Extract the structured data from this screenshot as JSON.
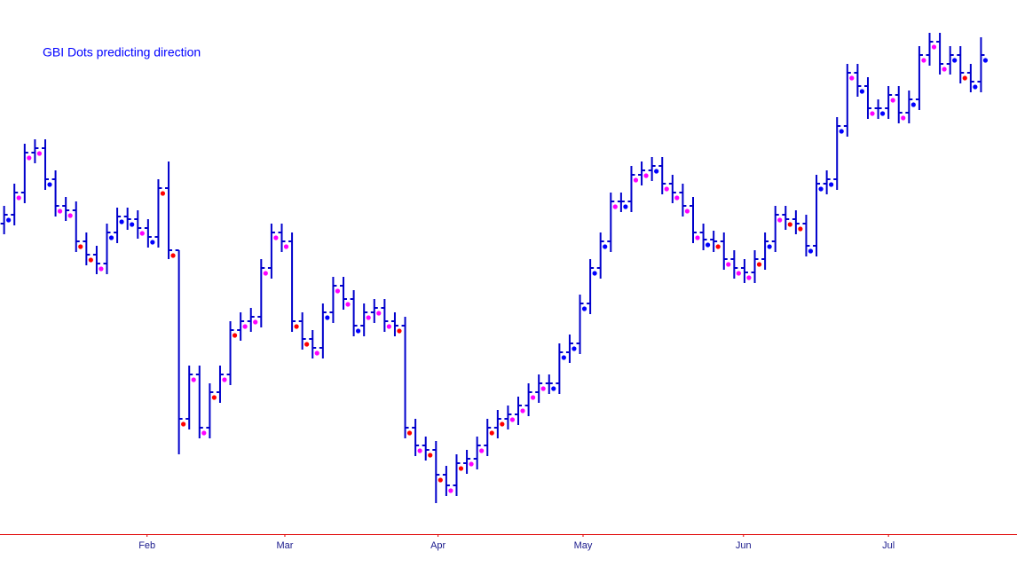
{
  "chart_data": {
    "type": "ohlc",
    "title": "GBI Dots predicting direction",
    "color": "#0000cc",
    "axis_color": "#e00000",
    "xlim": [
      -0.4,
      98.5
    ],
    "ylim": [
      0,
      600
    ],
    "xticks": [
      {
        "value": 13.9,
        "label": "Feb"
      },
      {
        "value": 27.3,
        "label": "Mar"
      },
      {
        "value": 42.2,
        "label": "Apr"
      },
      {
        "value": 56.3,
        "label": "May"
      },
      {
        "value": 71.9,
        "label": "Jun"
      },
      {
        "value": 86.0,
        "label": "Jul"
      }
    ],
    "open": [
      350,
      360,
      385,
      430,
      435,
      400,
      370,
      365,
      330,
      315,
      305,
      340,
      358,
      355,
      345,
      335,
      390,
      320,
      130,
      180,
      120,
      160,
      180,
      230,
      240,
      245,
      300,
      340,
      330,
      240,
      220,
      210,
      250,
      280,
      265,
      235,
      250,
      255,
      240,
      235,
      120,
      100,
      95,
      67,
      55,
      80,
      85,
      100,
      120,
      130,
      135,
      145,
      160,
      170,
      170,
      205,
      215,
      260,
      300,
      330,
      375,
      375,
      405,
      410,
      415,
      395,
      385,
      370,
      340,
      332,
      330,
      310,
      300,
      295,
      310,
      330,
      360,
      355,
      350,
      325,
      395,
      400,
      460,
      520,
      505,
      480,
      480,
      495,
      475,
      490,
      540,
      555,
      530,
      540,
      520,
      510
    ],
    "high": [
      370,
      395,
      440,
      445,
      445,
      410,
      380,
      375,
      340,
      325,
      350,
      368,
      368,
      365,
      355,
      400,
      420,
      320,
      190,
      190,
      170,
      190,
      240,
      250,
      255,
      310,
      350,
      350,
      340,
      250,
      230,
      260,
      290,
      290,
      275,
      260,
      265,
      265,
      250,
      245,
      130,
      110,
      105,
      77,
      90,
      95,
      110,
      130,
      140,
      145,
      155,
      170,
      180,
      180,
      215,
      225,
      270,
      310,
      340,
      385,
      385,
      415,
      420,
      425,
      425,
      405,
      395,
      380,
      350,
      342,
      340,
      320,
      310,
      320,
      340,
      370,
      370,
      365,
      360,
      405,
      410,
      470,
      530,
      530,
      515,
      490,
      505,
      505,
      500,
      550,
      565,
      565,
      550,
      550,
      530,
      560
    ],
    "low": [
      338,
      348,
      373,
      418,
      388,
      358,
      353,
      318,
      303,
      293,
      293,
      328,
      343,
      333,
      323,
      323,
      310,
      90,
      118,
      108,
      108,
      148,
      168,
      218,
      228,
      233,
      288,
      318,
      228,
      208,
      198,
      198,
      238,
      253,
      223,
      223,
      238,
      228,
      223,
      108,
      88,
      83,
      35,
      43,
      43,
      68,
      73,
      88,
      108,
      118,
      123,
      133,
      148,
      158,
      158,
      193,
      203,
      248,
      288,
      318,
      363,
      363,
      393,
      398,
      383,
      373,
      358,
      328,
      320,
      318,
      298,
      288,
      283,
      283,
      298,
      318,
      343,
      338,
      313,
      313,
      383,
      388,
      448,
      493,
      468,
      468,
      468,
      463,
      463,
      478,
      528,
      518,
      518,
      508,
      498,
      498
    ],
    "close": [
      360,
      385,
      430,
      435,
      400,
      370,
      365,
      330,
      315,
      305,
      340,
      358,
      355,
      345,
      335,
      390,
      320,
      130,
      180,
      120,
      160,
      180,
      230,
      240,
      245,
      300,
      340,
      330,
      240,
      220,
      210,
      250,
      280,
      265,
      235,
      250,
      255,
      240,
      235,
      120,
      100,
      95,
      67,
      55,
      80,
      85,
      100,
      120,
      130,
      135,
      145,
      160,
      170,
      170,
      205,
      215,
      260,
      300,
      330,
      375,
      375,
      405,
      410,
      415,
      395,
      385,
      370,
      340,
      332,
      330,
      310,
      300,
      295,
      310,
      330,
      360,
      355,
      350,
      325,
      395,
      400,
      460,
      520,
      505,
      480,
      480,
      495,
      475,
      490,
      540,
      555,
      530,
      540,
      520,
      510,
      540
    ],
    "dots": [
      354,
      379,
      424,
      429,
      394,
      364,
      359,
      324,
      309,
      299,
      334,
      352,
      349,
      339,
      329,
      384,
      314,
      124,
      174,
      114,
      154,
      174,
      224,
      234,
      239,
      294,
      334,
      324,
      234,
      214,
      204,
      244,
      274,
      259,
      229,
      244,
      249,
      234,
      229,
      114,
      94,
      89,
      61,
      49,
      74,
      79,
      94,
      114,
      124,
      129,
      139,
      154,
      164,
      164,
      199,
      209,
      254,
      294,
      324,
      369,
      369,
      399,
      404,
      409,
      389,
      379,
      364,
      334,
      326,
      324,
      304,
      294,
      289,
      304,
      324,
      354,
      349,
      344,
      319,
      389,
      394,
      454,
      514,
      499,
      474,
      474,
      489,
      469,
      484,
      534,
      549,
      524,
      534,
      514,
      504,
      534
    ],
    "dot_colors": [
      "#0000ff",
      "#ff00ff",
      "#ff00ff",
      "#ff00ff",
      "#0000ff",
      "#ff00ff",
      "#ff00ff",
      "#ff0000",
      "#ff0000",
      "#ff00ff",
      "#0000ff",
      "#0000ff",
      "#0000ff",
      "#ff00ff",
      "#0000ff",
      "#ff0000",
      "#ff0000",
      "#ff0000",
      "#ff00ff",
      "#ff00ff",
      "#ff0000",
      "#ff00ff",
      "#ff0000",
      "#ff00ff",
      "#ff00ff",
      "#ff00ff",
      "#ff00ff",
      "#ff00ff",
      "#ff0000",
      "#ff0000",
      "#ff00ff",
      "#0000ff",
      "#ff00ff",
      "#ff00ff",
      "#0000ff",
      "#ff00ff",
      "#ff00ff",
      "#ff00ff",
      "#ff0000",
      "#ff0000",
      "#ff00ff",
      "#ff0000",
      "#ff0000",
      "#ff00ff",
      "#ff0000",
      "#ff00ff",
      "#ff00ff",
      "#ff0000",
      "#ff0000",
      "#ff00ff",
      "#ff00ff",
      "#ff00ff",
      "#ff00ff",
      "#0000ff",
      "#0000ff",
      "#0000ff",
      "#0000ff",
      "#0000ff",
      "#0000ff",
      "#ff00ff",
      "#0000ff",
      "#ff00ff",
      "#ff00ff",
      "#0000ff",
      "#ff00ff",
      "#ff00ff",
      "#ff00ff",
      "#ff00ff",
      "#0000ff",
      "#ff0000",
      "#ff00ff",
      "#ff00ff",
      "#ff00ff",
      "#ff0000",
      "#0000ff",
      "#ff00ff",
      "#ff0000",
      "#ff0000",
      "#0000ff",
      "#0000ff",
      "#0000ff",
      "#0000ff",
      "#ff00ff",
      "#0000ff",
      "#ff00ff",
      "#0000ff",
      "#ff00ff",
      "#ff00ff",
      "#0000ff",
      "#ff00ff",
      "#ff00ff",
      "#ff00ff",
      "#0000ff",
      "#ff0000",
      "#0000ff",
      "#0000ff"
    ]
  }
}
